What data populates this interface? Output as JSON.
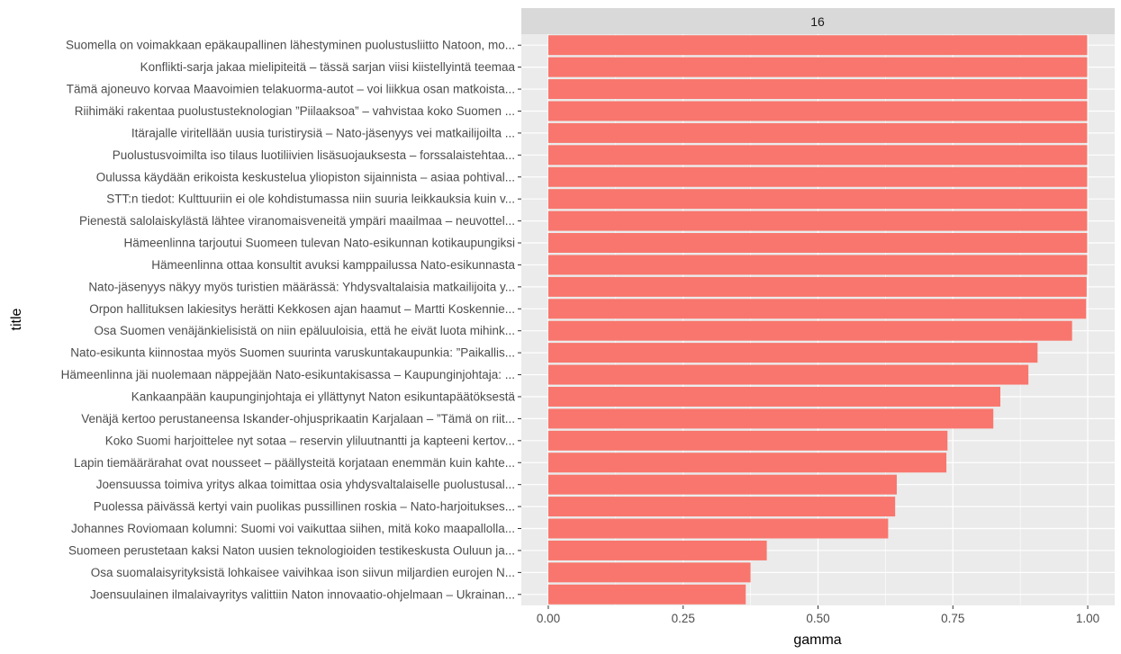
{
  "chart_data": {
    "type": "bar",
    "orientation": "horizontal",
    "facet_label": "16",
    "xlabel": "gamma",
    "ylabel": "title",
    "xlim": [
      -0.05,
      1.05
    ],
    "x_ticks": [
      0.0,
      0.25,
      0.5,
      0.75,
      1.0
    ],
    "x_tick_labels": [
      "0.00",
      "0.25",
      "0.50",
      "0.75",
      "1.00"
    ],
    "grid": true,
    "bar_color": "#F8766D",
    "panel_background": "#EBEBEB",
    "strip_background": "#D9D9D9",
    "categories": [
      "Suomella on voimakkaan epäkaupallinen lähestyminen puolustusliitto Natoon, mo...",
      "Konflikti-sarja jakaa mielipiteitä – tässä sarjan viisi kiistellyintä teemaa",
      "Tämä ajoneuvo korvaa Maavoimien telakuorma-autot – voi liikkua osan matkoista...",
      "Riihimäki rakentaa puolustusteknologian ”Piilaaksoa” – vahvistaa koko Suomen ...",
      "Itärajalle viritellään uusia turistirysiä – Nato-jäsenyys vei matkailijoilta ...",
      "Puolustusvoimilta iso tilaus luotiliivien lisäsuojauksesta – forssalaistehtaa...",
      "Oulussa käydään erikoista keskustelua yliopiston sijainnista – asiaa pohtival...",
      "STT:n tiedot: Kulttuuriin ei ole kohdistumassa niin suuria leikkauksia kuin v...",
      "Pienestä salolaiskylästä lähtee viranomaisveneitä ympäri maailmaa – neuvottel...",
      "Hämeenlinna tarjoutui Suomeen tulevan Nato-esikunnan kotikaupungiksi",
      "Hämeenlinna ottaa konsultit avuksi kamppailussa Nato-esikunnasta",
      "Nato-jäsenyys näkyy myös turistien määrässä: Yhdysvaltalaisia matkailijoita y...",
      "Orpon hallituksen lakiesitys herätti Kekkosen ajan haamut –  Martti Koskennie...",
      "Osa Suomen venäjänkielisistä on niin epäluuloisia, että he eivät luota mihink...",
      "Nato-esikunta kiinnostaa myös Suomen suurinta varuskuntakaupunkia: ”Paikallis...",
      "Hämeenlinna jäi nuolemaan näppejään Nato-esikuntakisassa – Kaupunginjohtaja: ...",
      "Kankaanpään kaupunginjohtaja ei yllättynyt Naton esikuntapäätöksestä",
      "Venäjä kertoo perustaneensa Iskander-ohjusprikaatin Karjalaan – ”Tämä on riit...",
      "Koko Suomi harjoittelee nyt sotaa – reservin yliluutnantti ja kapteeni kertov...",
      "Lapin tiemäärärahat ovat nousseet – päällysteitä korjataan enemmän kuin kahte...",
      "Joensuussa toimiva yritys alkaa toimittaa osia yhdysvaltalaiselle puolustusal...",
      "Puolessa päivässä kertyi vain puolikas pussillinen roskia – Nato-harjoitukses...",
      "Johannes Roviomaan kolumni: Suomi voi vaikuttaa siihen, mitä koko maapallolla...",
      "Suomeen perustetaan kaksi Naton uusien teknologioiden testikeskusta Ouluun ja...",
      "Osa suomalaisyrityksistä lohkaisee vaivihkaa ison siivun miljardien eurojen N...",
      "Joensuulainen ilmalaivayritys valittiin Naton innovaatio-ohjelmaan – Ukrainan..."
    ],
    "values": [
      0.999,
      0.999,
      0.999,
      0.999,
      0.999,
      0.999,
      0.999,
      0.999,
      0.999,
      0.999,
      0.999,
      0.998,
      0.997,
      0.971,
      0.907,
      0.89,
      0.838,
      0.825,
      0.74,
      0.738,
      0.646,
      0.643,
      0.63,
      0.405,
      0.375,
      0.366
    ]
  }
}
